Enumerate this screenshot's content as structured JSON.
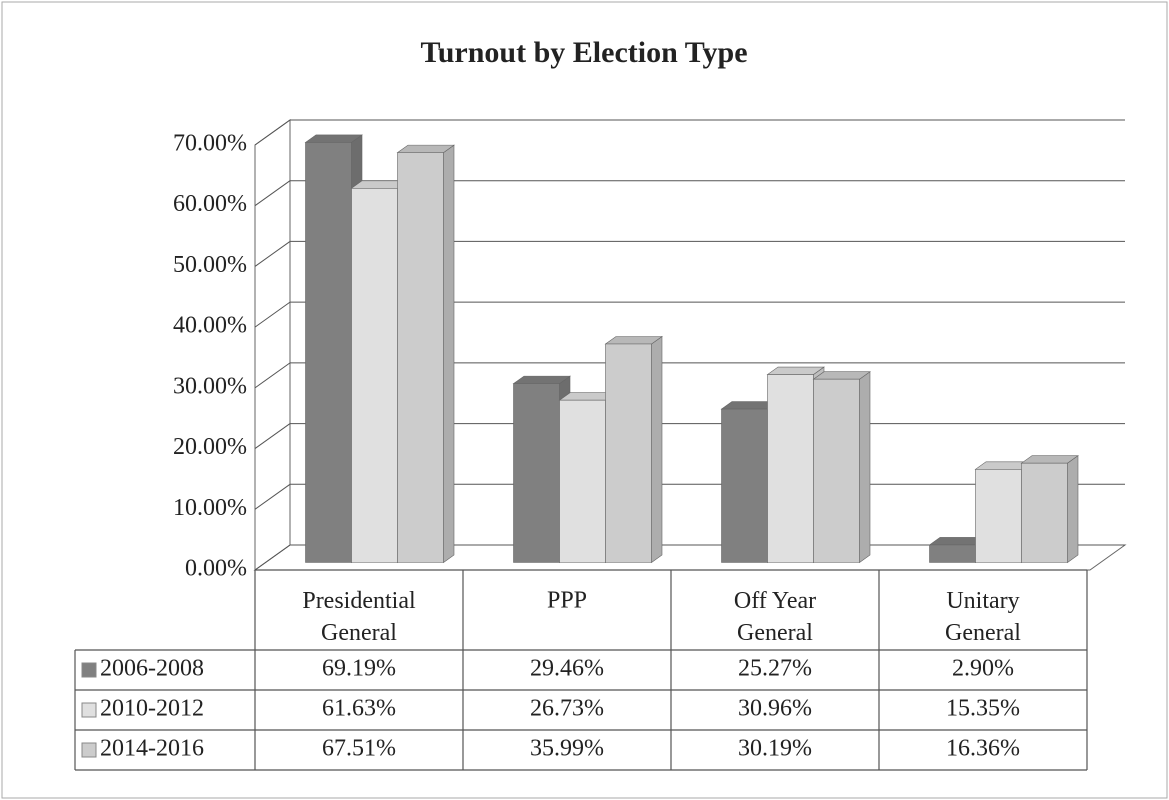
{
  "chart_data": {
    "type": "bar3d",
    "title": "Turnout by Election Type",
    "categories": [
      "Presidential General",
      "PPP",
      "Off Year General",
      "Unitary General"
    ],
    "series": [
      {
        "name": "2006-2008",
        "color": "#808080",
        "values": [
          69.19,
          29.46,
          25.27,
          2.9
        ],
        "value_labels": [
          "69.19%",
          "29.46%",
          "25.27%",
          "2.90%"
        ]
      },
      {
        "name": "2010-2012",
        "color": "#e0e0e0",
        "values": [
          61.63,
          26.73,
          30.96,
          15.35
        ],
        "value_labels": [
          "61.63%",
          "26.73%",
          "30.96%",
          "15.35%"
        ]
      },
      {
        "name": "2014-2016",
        "color": "#cccccc",
        "values": [
          67.51,
          35.99,
          30.19,
          16.36
        ],
        "value_labels": [
          "67.51%",
          "35.99%",
          "30.19%",
          "16.36%"
        ]
      }
    ],
    "ylim": [
      0,
      70
    ],
    "yticks": [
      {
        "value": 0,
        "label": "0.00%"
      },
      {
        "value": 10,
        "label": "10.00%"
      },
      {
        "value": 20,
        "label": "20.00%"
      },
      {
        "value": 30,
        "label": "30.00%"
      },
      {
        "value": 40,
        "label": "40.00%"
      },
      {
        "value": 50,
        "label": "50.00%"
      },
      {
        "value": 60,
        "label": "60.00%"
      },
      {
        "value": 70,
        "label": "70.00%"
      }
    ],
    "grid": true
  }
}
